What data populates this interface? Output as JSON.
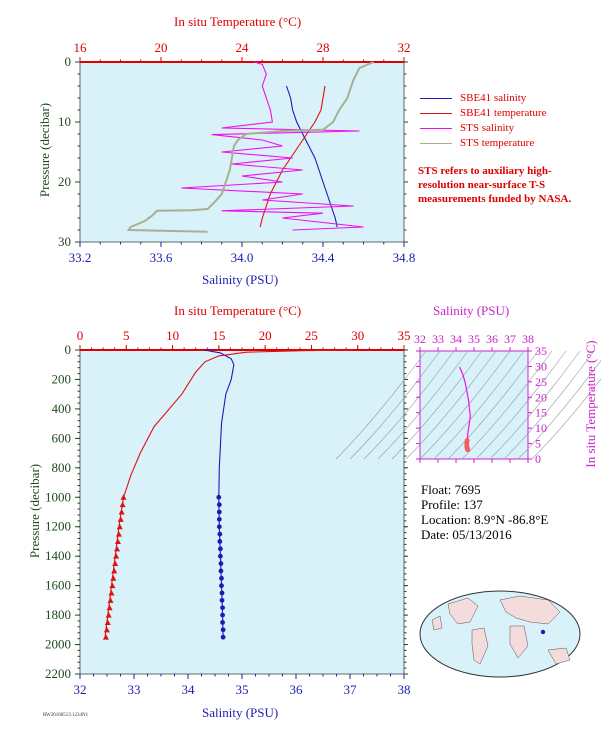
{
  "colors": {
    "bg": "#d9f1f9",
    "salinity_axis": "#1c1cb4",
    "temp_axis": "#dd0000",
    "pressure_axis": "#1f4a1f",
    "sbe41_salinity": "#1c1cb4",
    "sbe41_temperature": "#e01010",
    "sts_salinity": "#ee10ee",
    "sts_temperature": "#a6b093",
    "inset_axis": "#cc22cc"
  },
  "legend": [
    {
      "label": "SBE41 salinity",
      "color": "#1c1cb4"
    },
    {
      "label": "SBE41 temperature",
      "color": "#e01010"
    },
    {
      "label": "STS salinity",
      "color": "#ee10ee"
    },
    {
      "label": "STS temperature",
      "color": "#a6b093"
    }
  ],
  "note": "STS refers to auxiliary high-resolution near-surface T-S measurements funded by NASA.",
  "float_info": {
    "float": "Float:  7695",
    "profile": "Profile:  137",
    "location": "Location:  8.9°N  -86.8°E",
    "date": "Date:  05/13/2016"
  },
  "footer_tag": "RW20160513.1234N1",
  "chart_data": [
    {
      "type": "line",
      "title": "",
      "top_axis_label": "In situ Temperature (°C)",
      "bottom_axis_label": "Salinity (PSU)",
      "ylabel": "Pressure (decibar)",
      "xlim_salinity": [
        33.2,
        34.8
      ],
      "xlim_temperature": [
        16,
        32
      ],
      "ylim_pressure": [
        0,
        30
      ],
      "salinity_ticks": [
        "33.2",
        "33.6",
        "34.0",
        "34.4",
        "34.8"
      ],
      "temperature_ticks": [
        "16",
        "20",
        "24",
        "28",
        "32"
      ],
      "pressure_ticks": [
        "0",
        "10",
        "20",
        "30"
      ],
      "series": [
        {
          "name": "SBE41 salinity",
          "axis": "salinity",
          "points": [
            [
              34.22,
              4
            ],
            [
              34.24,
              6
            ],
            [
              34.25,
              8
            ],
            [
              34.27,
              10
            ],
            [
              34.3,
              12
            ],
            [
              34.33,
              14
            ],
            [
              34.36,
              16
            ],
            [
              34.38,
              18
            ],
            [
              34.4,
              20
            ],
            [
              34.42,
              22
            ],
            [
              34.44,
              24
            ],
            [
              34.46,
              26
            ],
            [
              34.47,
              27.5
            ]
          ]
        },
        {
          "name": "SBE41 temperature",
          "axis": "temperature",
          "points": [
            [
              28.1,
              4
            ],
            [
              28.0,
              6
            ],
            [
              27.9,
              8
            ],
            [
              27.6,
              10
            ],
            [
              27.2,
              12
            ],
            [
              26.8,
              14
            ],
            [
              26.4,
              16
            ],
            [
              26.0,
              18
            ],
            [
              25.7,
              20
            ],
            [
              25.4,
              22
            ],
            [
              25.2,
              24
            ],
            [
              25.0,
              26
            ],
            [
              24.9,
              27.5
            ]
          ]
        },
        {
          "name": "STS salinity",
          "axis": "salinity",
          "points": [
            [
              34.06,
              0
            ],
            [
              34.1,
              0.4
            ],
            [
              34.12,
              2
            ],
            [
              34.1,
              4
            ],
            [
              34.12,
              6
            ],
            [
              34.14,
              8
            ],
            [
              34.15,
              10
            ],
            [
              33.9,
              11
            ],
            [
              34.58,
              11.5
            ],
            [
              33.85,
              12.1
            ],
            [
              34.1,
              13
            ],
            [
              34.2,
              14
            ],
            [
              33.9,
              15
            ],
            [
              34.25,
              16
            ],
            [
              33.95,
              17
            ],
            [
              34.3,
              18
            ],
            [
              34.0,
              19
            ],
            [
              34.2,
              20
            ],
            [
              33.7,
              21
            ],
            [
              34.3,
              22
            ],
            [
              34.1,
              23
            ],
            [
              34.55,
              24
            ],
            [
              33.9,
              24.8
            ],
            [
              34.4,
              25.2
            ],
            [
              34.2,
              26
            ],
            [
              34.6,
              27.5
            ],
            [
              34.25,
              28
            ]
          ]
        },
        {
          "name": "STS temperature",
          "axis": "temperature",
          "points": [
            [
              30.5,
              0
            ],
            [
              29.8,
              1
            ],
            [
              29.5,
              3
            ],
            [
              29.2,
              6
            ],
            [
              28.8,
              8
            ],
            [
              28.5,
              10
            ],
            [
              28.0,
              11.3
            ],
            [
              26.0,
              11.5
            ],
            [
              24.2,
              12
            ],
            [
              23.8,
              13
            ],
            [
              23.6,
              14
            ],
            [
              23.5,
              16
            ],
            [
              23.4,
              18
            ],
            [
              23.2,
              20
            ],
            [
              23.0,
              22
            ],
            [
              22.6,
              23.5
            ],
            [
              22.3,
              24.5
            ],
            [
              21.5,
              24.7
            ],
            [
              19.8,
              24.8
            ],
            [
              19.6,
              25.5
            ],
            [
              19.2,
              26.5
            ],
            [
              18.5,
              27.5
            ],
            [
              18.4,
              28
            ],
            [
              22.3,
              28.3
            ]
          ]
        }
      ]
    },
    {
      "type": "line",
      "title": "",
      "top_axis_label": "In situ Temperature (°C)",
      "bottom_axis_label": "Salinity (PSU)",
      "ylabel": "Pressure (decibar)",
      "xlim_salinity": [
        32,
        38
      ],
      "xlim_temperature": [
        0,
        35
      ],
      "ylim_pressure": [
        0,
        2200
      ],
      "salinity_ticks": [
        "32",
        "33",
        "34",
        "35",
        "36",
        "37",
        "38"
      ],
      "temperature_ticks": [
        "0",
        "5",
        "10",
        "15",
        "20",
        "25",
        "30",
        "35"
      ],
      "pressure_ticks": [
        "0",
        "200",
        "400",
        "600",
        "800",
        "1000",
        "1200",
        "1400",
        "1600",
        "1800",
        "2000",
        "2200"
      ],
      "series": [
        {
          "name": "SBE41 salinity",
          "axis": "salinity",
          "points": [
            [
              34.3,
              0
            ],
            [
              34.6,
              20
            ],
            [
              34.8,
              60
            ],
            [
              34.85,
              100
            ],
            [
              34.8,
              200
            ],
            [
              34.7,
              300
            ],
            [
              34.62,
              500
            ],
            [
              34.58,
              800
            ],
            [
              34.57,
              1000
            ],
            [
              34.58,
              1200
            ],
            [
              34.6,
              1400
            ],
            [
              34.62,
              1600
            ],
            [
              34.64,
              1800
            ],
            [
              34.65,
              1950
            ]
          ],
          "markers": [
            [
              34.57,
              1000
            ],
            [
              34.58,
              1050
            ],
            [
              34.58,
              1100
            ],
            [
              34.58,
              1150
            ],
            [
              34.58,
              1200
            ],
            [
              34.59,
              1250
            ],
            [
              34.59,
              1300
            ],
            [
              34.6,
              1350
            ],
            [
              34.6,
              1400
            ],
            [
              34.61,
              1450
            ],
            [
              34.61,
              1500
            ],
            [
              34.62,
              1550
            ],
            [
              34.62,
              1600
            ],
            [
              34.63,
              1650
            ],
            [
              34.63,
              1700
            ],
            [
              34.64,
              1750
            ],
            [
              34.64,
              1800
            ],
            [
              34.64,
              1850
            ],
            [
              34.65,
              1900
            ],
            [
              34.65,
              1950
            ]
          ]
        },
        {
          "name": "SBE41 temperature",
          "axis": "temperature",
          "points": [
            [
              29.5,
              0
            ],
            [
              24,
              5
            ],
            [
              18,
              15
            ],
            [
              15,
              40
            ],
            [
              13.5,
              80
            ],
            [
              12.5,
              150
            ],
            [
              11,
              300
            ],
            [
              8,
              520
            ],
            [
              6.5,
              700
            ],
            [
              5.5,
              850
            ],
            [
              4.7,
              1000
            ],
            [
              4.2,
              1200
            ],
            [
              3.8,
              1400
            ],
            [
              3.4,
              1600
            ],
            [
              3.0,
              1800
            ],
            [
              2.7,
              1950
            ]
          ],
          "markers": [
            [
              4.7,
              1000
            ],
            [
              4.6,
              1050
            ],
            [
              4.5,
              1100
            ],
            [
              4.4,
              1150
            ],
            [
              4.3,
              1200
            ],
            [
              4.2,
              1250
            ],
            [
              4.1,
              1300
            ],
            [
              4.0,
              1350
            ],
            [
              3.9,
              1400
            ],
            [
              3.8,
              1450
            ],
            [
              3.7,
              1500
            ],
            [
              3.6,
              1550
            ],
            [
              3.5,
              1600
            ],
            [
              3.4,
              1650
            ],
            [
              3.3,
              1700
            ],
            [
              3.2,
              1750
            ],
            [
              3.1,
              1800
            ],
            [
              3.0,
              1850
            ],
            [
              2.9,
              1900
            ],
            [
              2.8,
              1950
            ]
          ]
        }
      ]
    },
    {
      "type": "scatter",
      "title": "",
      "xlabel": "Salinity (PSU)",
      "ylabel": "In situ Temperature (°C)",
      "xlim": [
        32,
        38
      ],
      "ylim": [
        0,
        35
      ],
      "x_ticks": [
        "32",
        "33",
        "34",
        "35",
        "36",
        "37",
        "38"
      ],
      "y_ticks": [
        "0",
        "5",
        "10",
        "15",
        "20",
        "25",
        "30",
        "35"
      ],
      "points": [
        [
          34.2,
          29.8
        ],
        [
          34.3,
          28.5
        ],
        [
          34.4,
          27
        ],
        [
          34.5,
          25
        ],
        [
          34.6,
          22
        ],
        [
          34.7,
          19
        ],
        [
          34.75,
          16
        ],
        [
          34.8,
          14
        ],
        [
          34.75,
          12
        ],
        [
          34.7,
          10
        ],
        [
          34.65,
          8
        ],
        [
          34.62,
          6
        ],
        [
          34.6,
          5
        ],
        [
          34.6,
          4
        ],
        [
          34.62,
          3.5
        ],
        [
          34.65,
          3
        ]
      ]
    }
  ]
}
